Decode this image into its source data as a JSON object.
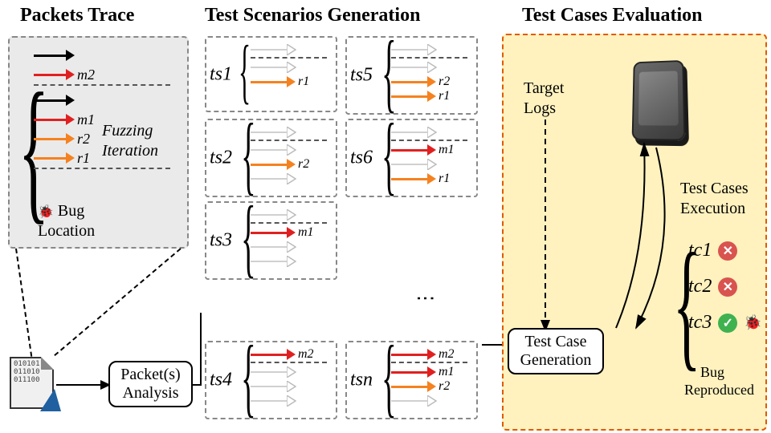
{
  "titles": {
    "packets_trace": "Packets Trace",
    "test_scenarios": "Test Scenarios Generation",
    "test_cases": "Test Cases Evaluation"
  },
  "trace_box": {
    "color": "#888",
    "bg": "#eaeaea",
    "arrows": [
      {
        "color": "#000",
        "label": ""
      },
      {
        "color": "#e02020",
        "label": "m2"
      },
      {
        "sep": true
      },
      {
        "color": "#000",
        "label": ""
      },
      {
        "color": "#e02020",
        "label": "m1"
      },
      {
        "color": "#f58220",
        "label": "r2"
      },
      {
        "color": "#f58220",
        "label": "r1"
      },
      {
        "sep": true
      }
    ],
    "annotation1": "Fuzzing",
    "annotation2": "Iteration",
    "bug_label": "Bug",
    "bug_label2": "Location"
  },
  "ts_boxes": {
    "ts1": {
      "label": "ts1",
      "arrows": [
        {
          "outline": true,
          "label": ""
        },
        {
          "sep": true
        },
        {
          "outline": true,
          "label": ""
        },
        {
          "color": "#f58220",
          "label": "r1"
        }
      ]
    },
    "ts2": {
      "label": "ts2",
      "arrows": [
        {
          "outline": true,
          "label": ""
        },
        {
          "sep": true
        },
        {
          "outline": true,
          "label": ""
        },
        {
          "color": "#f58220",
          "label": "r2"
        },
        {
          "outline": true,
          "label": ""
        }
      ]
    },
    "ts3": {
      "label": "ts3",
      "arrows": [
        {
          "outline": true,
          "label": ""
        },
        {
          "sep": true
        },
        {
          "color": "#e02020",
          "label": "m1"
        },
        {
          "outline": true,
          "label": ""
        },
        {
          "outline": true,
          "label": ""
        }
      ]
    },
    "ts4": {
      "label": "ts4",
      "arrows": [
        {
          "color": "#e02020",
          "label": "m2"
        },
        {
          "sep": true
        },
        {
          "outline": true,
          "label": ""
        },
        {
          "outline": true,
          "label": ""
        },
        {
          "outline": true,
          "label": ""
        }
      ]
    },
    "ts5": {
      "label": "ts5",
      "arrows": [
        {
          "outline": true,
          "label": ""
        },
        {
          "sep": true
        },
        {
          "outline": true,
          "label": ""
        },
        {
          "color": "#f58220",
          "label": "r2"
        },
        {
          "color": "#f58220",
          "label": "r1"
        }
      ]
    },
    "ts6": {
      "label": "ts6",
      "arrows": [
        {
          "outline": true,
          "label": ""
        },
        {
          "sep": true
        },
        {
          "color": "#e02020",
          "label": "m1"
        },
        {
          "outline": true,
          "label": ""
        },
        {
          "color": "#f58220",
          "label": "r1"
        }
      ]
    },
    "tsn": {
      "label": "tsn",
      "arrows": [
        {
          "color": "#e02020",
          "label": "m2"
        },
        {
          "sep": true
        },
        {
          "color": "#e02020",
          "label": "m1"
        },
        {
          "color": "#f58220",
          "label": "r2"
        },
        {
          "outline": true,
          "label": ""
        }
      ]
    }
  },
  "eval_box": {
    "border_color": "#e05a00",
    "bg": "#fff2bf",
    "target_logs": "Target",
    "target_logs2": "Logs",
    "test_cases_exec": "Test Cases",
    "test_cases_exec2": "Execution",
    "results": [
      {
        "label": "tc1",
        "pass": false
      },
      {
        "label": "tc2",
        "pass": false
      },
      {
        "label": "tc3",
        "pass": true
      }
    ],
    "bug_reproduced": "Bug",
    "bug_reproduced2": "Reproduced",
    "colors": {
      "fail": "#d9534f",
      "pass": "#3fb24f"
    }
  },
  "boxes": {
    "packet_analysis": "Packet(s)\nAnalysis",
    "test_case_gen": "Test Case\nGeneration"
  },
  "file_content": "010101\n011010\n011100"
}
